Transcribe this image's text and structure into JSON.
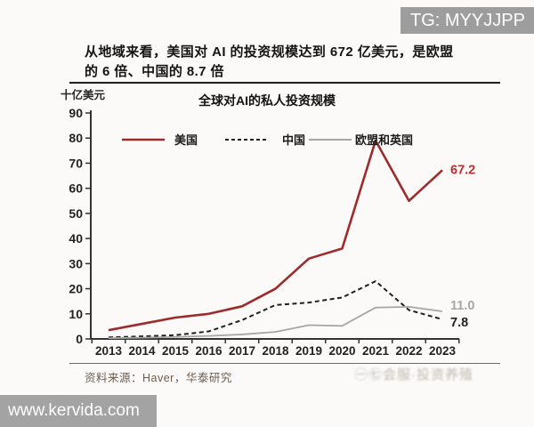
{
  "badges": {
    "tg": "TG: MYYJJPP",
    "site": "www.kervida.com"
  },
  "headline": {
    "line1": "从地域来看，美国对 AI 的投资规模达到 672 亿美元，是欧盟",
    "line2": "的 6 倍、中国的 8.7 倍"
  },
  "footer": {
    "source": "资料来源：Haver，华泰研究",
    "watermark": "㊀㊆会服·投资养殖"
  },
  "chart_data": {
    "type": "line",
    "title": "全球对AI的私人投资规模",
    "ylabel": "十亿美元",
    "xlabel": "",
    "categories": [
      "2013",
      "2014",
      "2015",
      "2016",
      "2017",
      "2018",
      "2019",
      "2020",
      "2021",
      "2022",
      "2023"
    ],
    "series": [
      {
        "name": "美国",
        "color": "#9e2a2b",
        "dash": false,
        "values": [
          3.5,
          6,
          8.5,
          10,
          13,
          20,
          32,
          36,
          79,
          55,
          67.2
        ],
        "end_label": "67.2",
        "end_label_color": "#bf2f2f",
        "label_dy": 4
      },
      {
        "name": "中国",
        "color": "#1f1f1f",
        "dash": true,
        "values": [
          0.6,
          1,
          1.5,
          3,
          7.5,
          13.5,
          14.5,
          16.5,
          23,
          11.5,
          7.8
        ],
        "end_label": "7.8",
        "end_label_color": "#1f1f1f",
        "label_dy": 8
      },
      {
        "name": "欧盟和英国",
        "color": "#a6a6a6",
        "dash": false,
        "values": [
          0.3,
          0.5,
          0.8,
          1.2,
          1.8,
          2.8,
          5.5,
          5.2,
          12.5,
          12.8,
          11.0
        ],
        "end_label": "11.0",
        "end_label_color": "#a6a6a6",
        "label_dy": -2
      }
    ],
    "ylim": [
      0,
      90
    ],
    "ytick_step": 10,
    "legend_position": "top",
    "grid": false
  }
}
